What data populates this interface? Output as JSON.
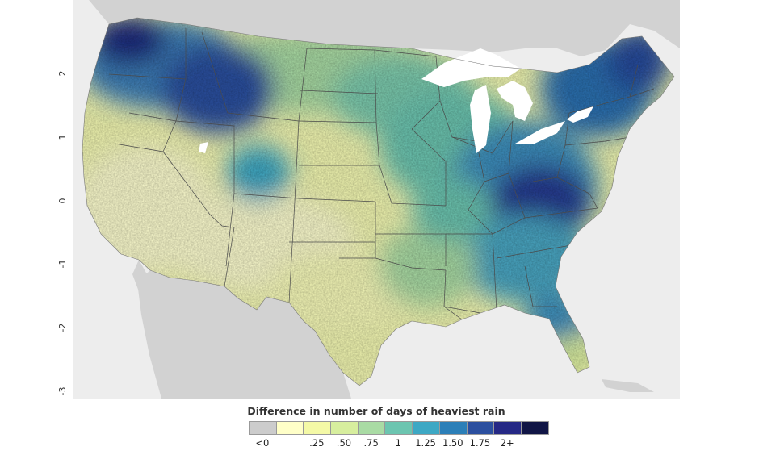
{
  "map": {
    "y_ticks": [
      "2",
      "1",
      "0",
      "-1",
      "-2",
      "-3"
    ]
  },
  "legend": {
    "title": "Difference in number of days of heaviest rain",
    "items": [
      {
        "label": "<0",
        "color": "#cccccc"
      },
      {
        "label": "",
        "color": "#ffffc8"
      },
      {
        "label": ".25",
        "color": "#f4f9a6"
      },
      {
        "label": ".50",
        "color": "#d7ee9e"
      },
      {
        "label": ".75",
        "color": "#a9dba4"
      },
      {
        "label": "1",
        "color": "#6cc5b0"
      },
      {
        "label": "1.25",
        "color": "#3da8c4"
      },
      {
        "label": "1.50",
        "color": "#2b7fb8"
      },
      {
        "label": "1.75",
        "color": "#2b4f9f"
      },
      {
        "label": "2+",
        "color": "#252885"
      },
      {
        "label": "",
        "color": "#101545"
      }
    ]
  },
  "colors": {
    "ocean": "#ededed",
    "land_outside": "#d2d2d2",
    "lakes": "#ffffff",
    "borders": "#4a4a4a"
  }
}
